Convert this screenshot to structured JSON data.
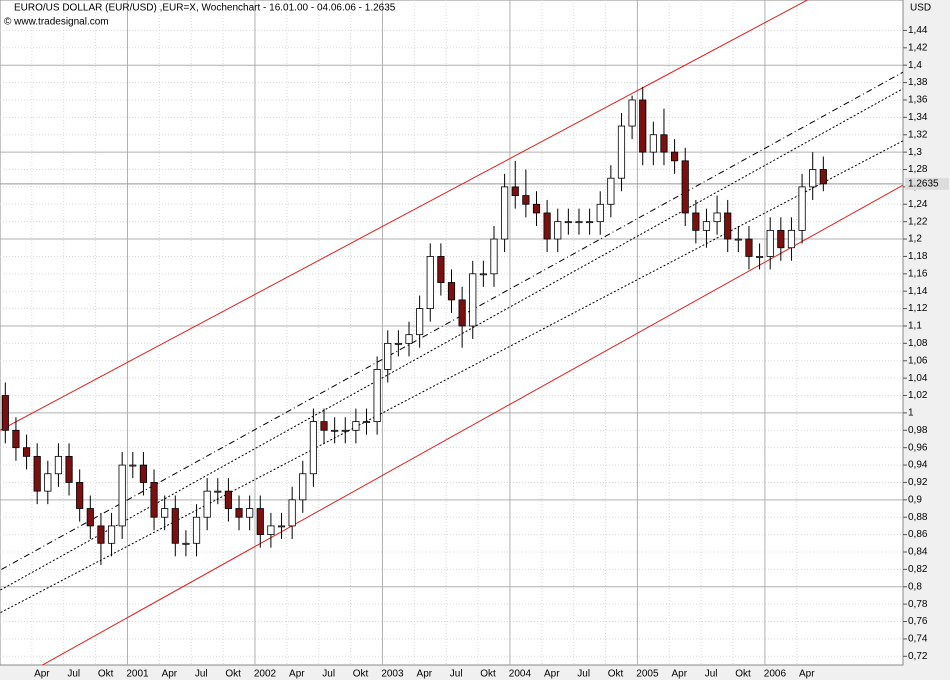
{
  "chart_data": {
    "type": "candlestick",
    "title": "EURO/US DOLLAR (EUR/USD) ,EUR=X, Wochenchart - 16.01.00 - 04.06.06 - 1.2635",
    "subtitle": "© www.tradesignal.com",
    "y_axis_label": "USD",
    "x": [
      "2000-01",
      "2000-02",
      "2000-03",
      "2000-04",
      "2000-05",
      "2000-06",
      "2000-07",
      "2000-08",
      "2000-09",
      "2000-10",
      "2000-11",
      "2000-12",
      "2001-01",
      "2001-02",
      "2001-03",
      "2001-04",
      "2001-05",
      "2001-06",
      "2001-07",
      "2001-08",
      "2001-09",
      "2001-10",
      "2001-11",
      "2001-12",
      "2002-01",
      "2002-02",
      "2002-03",
      "2002-04",
      "2002-05",
      "2002-06",
      "2002-07",
      "2002-08",
      "2002-09",
      "2002-10",
      "2002-11",
      "2002-12",
      "2003-01",
      "2003-02",
      "2003-03",
      "2003-04",
      "2003-05",
      "2003-06",
      "2003-07",
      "2003-08",
      "2003-09",
      "2003-10",
      "2003-11",
      "2003-12",
      "2004-01",
      "2004-02",
      "2004-03",
      "2004-04",
      "2004-05",
      "2004-06",
      "2004-07",
      "2004-08",
      "2004-09",
      "2004-10",
      "2004-11",
      "2004-12",
      "2005-01",
      "2005-02",
      "2005-03",
      "2005-04",
      "2005-05",
      "2005-06",
      "2005-07",
      "2005-08",
      "2005-09",
      "2005-10",
      "2005-11",
      "2005-12",
      "2006-01",
      "2006-02",
      "2006-03",
      "2006-04",
      "2006-05",
      "2006-06"
    ],
    "open": [
      1.02,
      0.98,
      0.96,
      0.95,
      0.91,
      0.93,
      0.95,
      0.92,
      0.89,
      0.87,
      0.85,
      0.87,
      0.94,
      0.94,
      0.92,
      0.88,
      0.89,
      0.85,
      0.85,
      0.88,
      0.91,
      0.91,
      0.89,
      0.88,
      0.89,
      0.86,
      0.87,
      0.87,
      0.9,
      0.93,
      0.99,
      0.98,
      0.98,
      0.98,
      0.99,
      0.99,
      1.05,
      1.08,
      1.08,
      1.09,
      1.12,
      1.18,
      1.15,
      1.13,
      1.1,
      1.16,
      1.16,
      1.2,
      1.26,
      1.25,
      1.24,
      1.23,
      1.2,
      1.22,
      1.22,
      1.22,
      1.22,
      1.24,
      1.27,
      1.33,
      1.36,
      1.3,
      1.32,
      1.3,
      1.29,
      1.23,
      1.21,
      1.22,
      1.23,
      1.2,
      1.2,
      1.18,
      1.18,
      1.21,
      1.19,
      1.21,
      1.26,
      1.28
    ],
    "high": [
      1.035,
      0.995,
      0.975,
      0.965,
      0.945,
      0.965,
      0.965,
      0.935,
      0.905,
      0.885,
      0.885,
      0.955,
      0.955,
      0.955,
      0.935,
      0.905,
      0.905,
      0.865,
      0.895,
      0.925,
      0.925,
      0.925,
      0.905,
      0.905,
      0.905,
      0.885,
      0.885,
      0.915,
      0.945,
      1.005,
      1.005,
      0.995,
      0.995,
      1.005,
      1.005,
      1.065,
      1.095,
      1.095,
      1.105,
      1.135,
      1.195,
      1.195,
      1.165,
      1.145,
      1.175,
      1.175,
      1.215,
      1.275,
      1.29,
      1.28,
      1.255,
      1.245,
      1.235,
      1.235,
      1.235,
      1.235,
      1.255,
      1.285,
      1.345,
      1.365,
      1.375,
      1.335,
      1.35,
      1.315,
      1.305,
      1.245,
      1.235,
      1.25,
      1.245,
      1.215,
      1.215,
      1.195,
      1.225,
      1.225,
      1.225,
      1.275,
      1.3,
      1.295
    ],
    "low": [
      0.965,
      0.945,
      0.935,
      0.895,
      0.895,
      0.915,
      0.905,
      0.875,
      0.855,
      0.825,
      0.835,
      0.855,
      0.925,
      0.905,
      0.865,
      0.865,
      0.835,
      0.835,
      0.835,
      0.865,
      0.895,
      0.875,
      0.865,
      0.865,
      0.845,
      0.845,
      0.855,
      0.855,
      0.885,
      0.915,
      0.965,
      0.965,
      0.965,
      0.965,
      0.975,
      0.975,
      1.035,
      1.065,
      1.065,
      1.075,
      1.105,
      1.135,
      1.115,
      1.075,
      1.085,
      1.145,
      1.145,
      1.185,
      1.235,
      1.225,
      1.215,
      1.185,
      1.185,
      1.205,
      1.205,
      1.205,
      1.205,
      1.225,
      1.255,
      1.315,
      1.285,
      1.285,
      1.285,
      1.275,
      1.215,
      1.195,
      1.19,
      1.205,
      1.185,
      1.185,
      1.165,
      1.165,
      1.165,
      1.175,
      1.175,
      1.195,
      1.245,
      1.255
    ],
    "close": [
      0.98,
      0.96,
      0.95,
      0.91,
      0.93,
      0.95,
      0.92,
      0.89,
      0.87,
      0.85,
      0.87,
      0.94,
      0.94,
      0.92,
      0.88,
      0.89,
      0.85,
      0.85,
      0.88,
      0.91,
      0.91,
      0.89,
      0.88,
      0.89,
      0.86,
      0.87,
      0.87,
      0.9,
      0.93,
      0.99,
      0.98,
      0.98,
      0.98,
      0.99,
      0.99,
      1.05,
      1.08,
      1.08,
      1.09,
      1.12,
      1.18,
      1.15,
      1.13,
      1.1,
      1.16,
      1.16,
      1.2,
      1.26,
      1.25,
      1.24,
      1.23,
      1.2,
      1.22,
      1.22,
      1.22,
      1.22,
      1.24,
      1.27,
      1.33,
      1.36,
      1.3,
      1.32,
      1.3,
      1.29,
      1.23,
      1.21,
      1.22,
      1.23,
      1.2,
      1.2,
      1.18,
      1.18,
      1.21,
      1.19,
      1.21,
      1.26,
      1.28,
      1.2635
    ],
    "up_color": "#ffffff",
    "down_color": "#7a1010",
    "xlim": [
      "2000-01",
      "2007-02"
    ],
    "ylim": [
      0.71,
      1.475
    ],
    "xticks": [
      {
        "value": "2000-04",
        "label": "Apr"
      },
      {
        "value": "2000-07",
        "label": "Jul"
      },
      {
        "value": "2000-10",
        "label": "Okt"
      },
      {
        "value": "2001-01",
        "label": "2001"
      },
      {
        "value": "2001-04",
        "label": "Apr"
      },
      {
        "value": "2001-07",
        "label": "Jul"
      },
      {
        "value": "2001-10",
        "label": "Okt"
      },
      {
        "value": "2002-01",
        "label": "2002"
      },
      {
        "value": "2002-04",
        "label": "Apr"
      },
      {
        "value": "2002-07",
        "label": "Jul"
      },
      {
        "value": "2002-10",
        "label": "Okt"
      },
      {
        "value": "2003-01",
        "label": "2003"
      },
      {
        "value": "2003-04",
        "label": "Apr"
      },
      {
        "value": "2003-07",
        "label": "Jul"
      },
      {
        "value": "2003-10",
        "label": "Okt"
      },
      {
        "value": "2004-01",
        "label": "2004"
      },
      {
        "value": "2004-04",
        "label": "Apr"
      },
      {
        "value": "2004-07",
        "label": "Jul"
      },
      {
        "value": "2004-10",
        "label": "Okt"
      },
      {
        "value": "2005-01",
        "label": "2005"
      },
      {
        "value": "2005-04",
        "label": "Apr"
      },
      {
        "value": "2005-07",
        "label": "Jul"
      },
      {
        "value": "2005-10",
        "label": "Okt"
      },
      {
        "value": "2006-01",
        "label": "2006"
      },
      {
        "value": "2006-04",
        "label": "Apr"
      }
    ],
    "yticks": [
      {
        "value": 0.72,
        "label": "0,72"
      },
      {
        "value": 0.74,
        "label": "0,74"
      },
      {
        "value": 0.76,
        "label": "0,76"
      },
      {
        "value": 0.78,
        "label": "0,78"
      },
      {
        "value": 0.8,
        "label": "0,8"
      },
      {
        "value": 0.82,
        "label": "0,82"
      },
      {
        "value": 0.84,
        "label": "0,84"
      },
      {
        "value": 0.86,
        "label": "0,86"
      },
      {
        "value": 0.88,
        "label": "0,88"
      },
      {
        "value": 0.9,
        "label": "0,9"
      },
      {
        "value": 0.92,
        "label": "0,92"
      },
      {
        "value": 0.94,
        "label": "0,94"
      },
      {
        "value": 0.96,
        "label": "0,96"
      },
      {
        "value": 0.98,
        "label": "0,98"
      },
      1,
      {
        "value": 1.02,
        "label": "1,02"
      },
      {
        "value": 1.04,
        "label": "1,04"
      },
      {
        "value": 1.06,
        "label": "1,06"
      },
      {
        "value": 1.08,
        "label": "1,08"
      },
      {
        "value": 1.1,
        "label": "1,1"
      },
      {
        "value": 1.12,
        "label": "1,12"
      },
      {
        "value": 1.14,
        "label": "1,14"
      },
      {
        "value": 1.16,
        "label": "1,16"
      },
      {
        "value": 1.18,
        "label": "1,18"
      },
      {
        "value": 1.2,
        "label": "1,2"
      },
      {
        "value": 1.22,
        "label": "1,22"
      },
      {
        "value": 1.24,
        "label": "1,24"
      },
      {
        "value": 1.26,
        "label": "1,26"
      },
      {
        "value": 1.28,
        "label": "1,28"
      },
      {
        "value": 1.3,
        "label": "1,3"
      },
      {
        "value": 1.32,
        "label": "1,32"
      },
      {
        "value": 1.34,
        "label": "1,34"
      },
      {
        "value": 1.36,
        "label": "1,36"
      },
      {
        "value": 1.38,
        "label": "1,38"
      },
      {
        "value": 1.4,
        "label": "1,4"
      },
      {
        "value": 1.42,
        "label": "1,42"
      },
      {
        "value": 1.44,
        "label": "1,44"
      }
    ],
    "grid": true,
    "last_price": {
      "value": 1.2635,
      "label": "1.2635"
    },
    "trend_lines": [
      {
        "x": [
          "2000-01",
          "2006-05"
        ],
        "values": [
          0.98,
          1.475
        ],
        "color": "#e02020",
        "style": "solid"
      },
      {
        "x": [
          "2000-05",
          "2007-02"
        ],
        "values": [
          0.71,
          1.262
        ],
        "color": "#e02020",
        "style": "solid"
      },
      {
        "x": [
          "2000-01",
          "2007-02"
        ],
        "values": [
          0.819,
          1.392
        ],
        "color": "#000000",
        "style": "dashdot"
      },
      {
        "x": [
          "2000-01",
          "2007-02"
        ],
        "values": [
          0.796,
          1.373
        ],
        "color": "#000000",
        "style": "dotted"
      },
      {
        "x": [
          "2000-01",
          "2007-02"
        ],
        "values": [
          0.77,
          1.313
        ],
        "color": "#000000",
        "style": "dotted"
      }
    ]
  }
}
